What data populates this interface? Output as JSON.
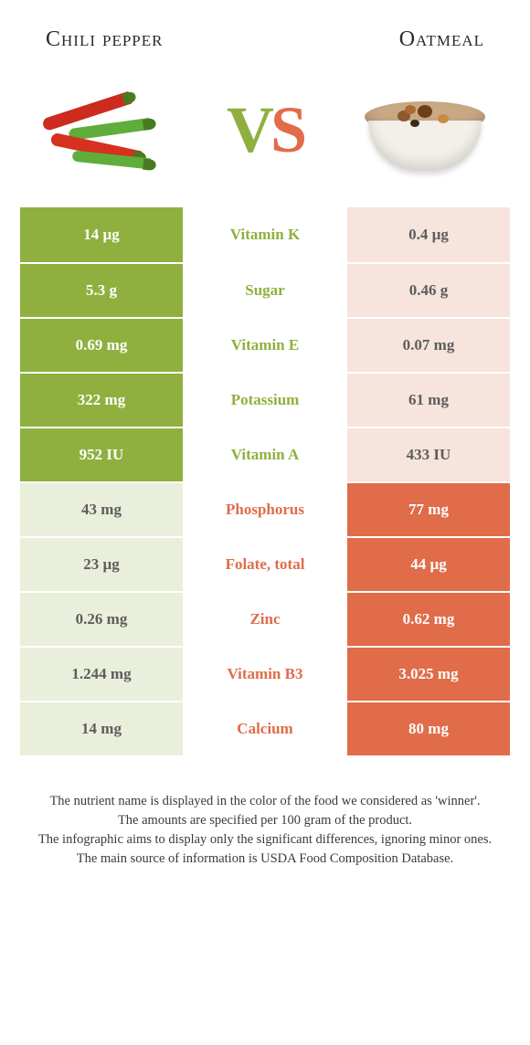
{
  "header": {
    "left_title": "Chili pepper",
    "right_title": "Oatmeal"
  },
  "vs": {
    "v": "V",
    "s": "S"
  },
  "colors": {
    "left": "#8fb03e",
    "left_pale": "#e9efdb",
    "right": "#e06c49",
    "right_pale": "#f6e4dd",
    "background": "#ffffff"
  },
  "rows": [
    {
      "nutrient": "Vitamin K",
      "left": "14 µg",
      "right": "0.4 µg",
      "winner": "left"
    },
    {
      "nutrient": "Sugar",
      "left": "5.3 g",
      "right": "0.46 g",
      "winner": "left"
    },
    {
      "nutrient": "Vitamin E",
      "left": "0.69 mg",
      "right": "0.07 mg",
      "winner": "left"
    },
    {
      "nutrient": "Potassium",
      "left": "322 mg",
      "right": "61 mg",
      "winner": "left"
    },
    {
      "nutrient": "Vitamin A",
      "left": "952 IU",
      "right": "433 IU",
      "winner": "left"
    },
    {
      "nutrient": "Phosphorus",
      "left": "43 mg",
      "right": "77 mg",
      "winner": "right"
    },
    {
      "nutrient": "Folate, total",
      "left": "23 µg",
      "right": "44 µg",
      "winner": "right"
    },
    {
      "nutrient": "Zinc",
      "left": "0.26 mg",
      "right": "0.62 mg",
      "winner": "right"
    },
    {
      "nutrient": "Vitamin B3",
      "left": "1.244 mg",
      "right": "3.025 mg",
      "winner": "right"
    },
    {
      "nutrient": "Calcium",
      "left": "14 mg",
      "right": "80 mg",
      "winner": "right"
    }
  ],
  "footer": {
    "line1": "The nutrient name is displayed in the color of the food we considered as 'winner'.",
    "line2": "The amounts are specified per 100 gram of the product.",
    "line3": "The infographic aims to display only the significant differences, ignoring minor ones.",
    "line4": "The main source of information is USDA Food Composition Database."
  }
}
